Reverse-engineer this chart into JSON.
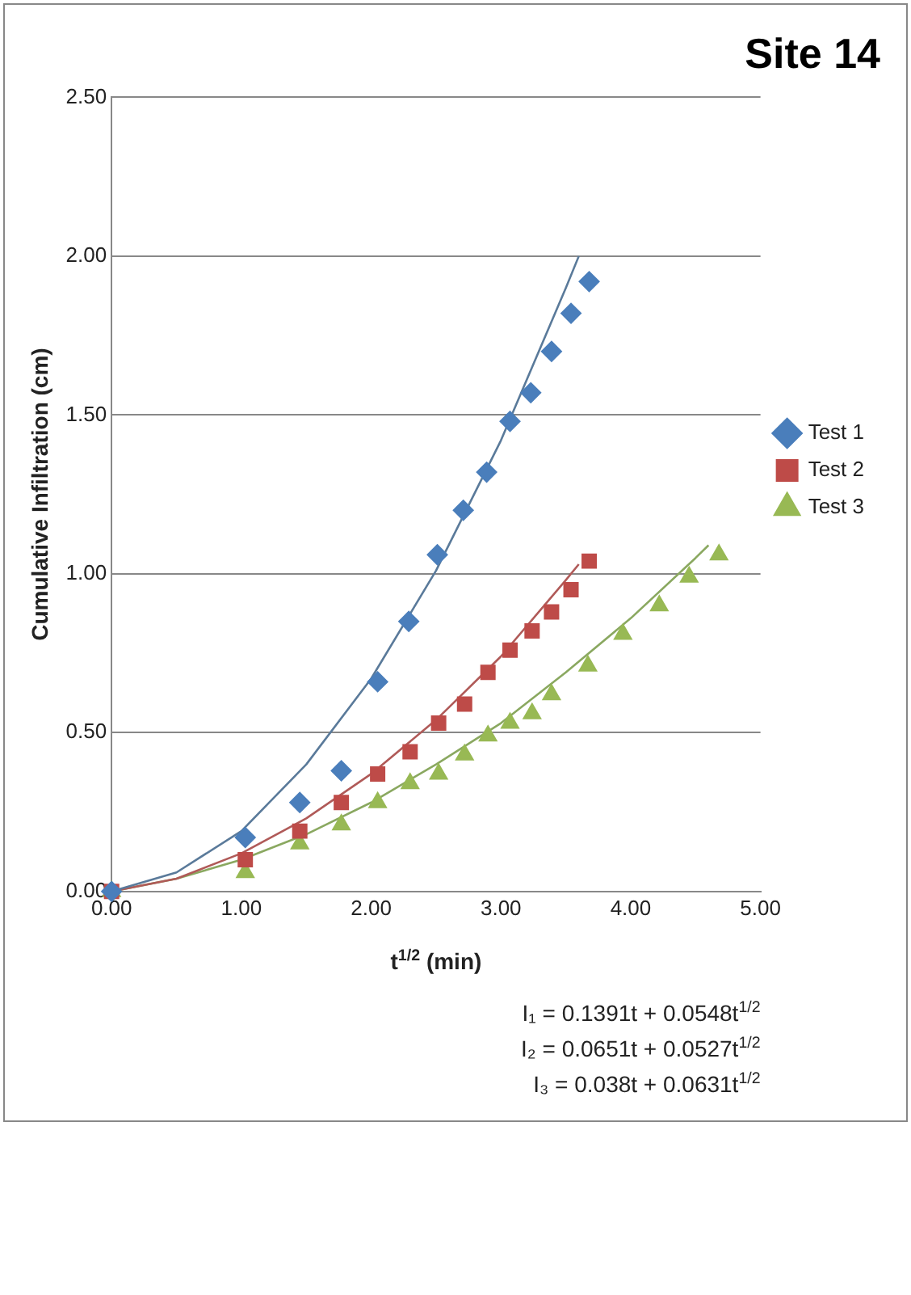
{
  "chart_data": {
    "type": "scatter",
    "title": "Site 14",
    "xlabel": "t$^{1/2}$ (min)",
    "ylabel": "Cumulative Infiltration (cm)",
    "xlim": [
      0,
      5
    ],
    "xticks": [
      {
        "value": 0,
        "label": "0.00"
      },
      {
        "value": 1,
        "label": "1.00"
      },
      {
        "value": 2,
        "label": "2.00"
      },
      {
        "value": 3,
        "label": "3.00"
      },
      {
        "value": 4,
        "label": "4.00"
      },
      {
        "value": 5,
        "label": "5.00"
      }
    ],
    "ylim": [
      0,
      2.5
    ],
    "yticks": [
      {
        "value": 0,
        "label": "0.00"
      },
      {
        "value": 0.5,
        "label": "0.50"
      },
      {
        "value": 1,
        "label": "1.00"
      },
      {
        "value": 1.5,
        "label": "1.50"
      },
      {
        "value": 2,
        "label": "2.00"
      },
      {
        "value": 2.5,
        "label": "2.50"
      }
    ],
    "grid": "y",
    "legend": "right",
    "annotations": [
      "I₁ = 0.1391t + 0.0548t$^{1/2}$",
      "I₂ = 0.0651t + 0.0527t$^{1/2}$",
      "I₃ = 0.038t + 0.0631t$^{1/2}$"
    ],
    "series": [
      {
        "name": "Test 1",
        "color": "#4a7ebb",
        "marker": "diamond",
        "x": [
          0,
          1.03,
          1.45,
          1.77,
          2.05,
          2.29,
          2.51,
          2.71,
          2.89,
          3.07,
          3.23,
          3.39,
          3.54,
          3.68
        ],
        "values": [
          0,
          0.17,
          0.28,
          0.38,
          0.66,
          0.85,
          1.06,
          1.2,
          1.32,
          1.48,
          1.57,
          1.7,
          1.82,
          1.92
        ]
      },
      {
        "name": "Test 2",
        "color": "#be4b48",
        "marker": "square",
        "x": [
          0,
          1.03,
          1.45,
          1.77,
          2.05,
          2.3,
          2.52,
          2.72,
          2.9,
          3.07,
          3.24,
          3.39,
          3.54,
          3.68
        ],
        "values": [
          0,
          0.1,
          0.19,
          0.28,
          0.37,
          0.44,
          0.53,
          0.59,
          0.69,
          0.76,
          0.82,
          0.88,
          0.95,
          1.04
        ]
      },
      {
        "name": "Test 3",
        "color": "#98b954",
        "marker": "triangle",
        "x": [
          0,
          1.03,
          1.45,
          1.77,
          2.05,
          2.3,
          2.52,
          2.72,
          2.9,
          3.07,
          3.24,
          3.39,
          3.67,
          3.94,
          4.22,
          4.45,
          4.68
        ],
        "values": [
          0,
          0.06,
          0.15,
          0.21,
          0.28,
          0.34,
          0.37,
          0.43,
          0.49,
          0.53,
          0.56,
          0.62,
          0.71,
          0.81,
          0.9,
          0.99,
          1.06
        ]
      },
      {
        "type": "line",
        "color": "#5a7a9a",
        "marker": "none",
        "x": [
          0,
          0.5,
          1,
          1.5,
          2,
          2.5,
          3,
          3.5,
          3.6
        ],
        "values": [
          0,
          0.06,
          0.19,
          0.4,
          0.67,
          1.01,
          1.42,
          1.9,
          2
        ]
      },
      {
        "type": "line",
        "color": "#b05a58",
        "marker": "none",
        "x": [
          0,
          0.5,
          1,
          1.5,
          2,
          2.5,
          3,
          3.5,
          3.6
        ],
        "values": [
          0,
          0.04,
          0.12,
          0.23,
          0.37,
          0.54,
          0.74,
          0.98,
          1.03
        ]
      },
      {
        "type": "line",
        "color": "#8aa860",
        "marker": "none",
        "x": [
          0,
          0.5,
          1,
          1.5,
          2,
          2.5,
          3,
          3.5,
          4,
          4.5,
          4.6
        ],
        "values": [
          0,
          0.04,
          0.1,
          0.18,
          0.28,
          0.4,
          0.53,
          0.69,
          0.86,
          1.05,
          1.09
        ]
      }
    ]
  }
}
